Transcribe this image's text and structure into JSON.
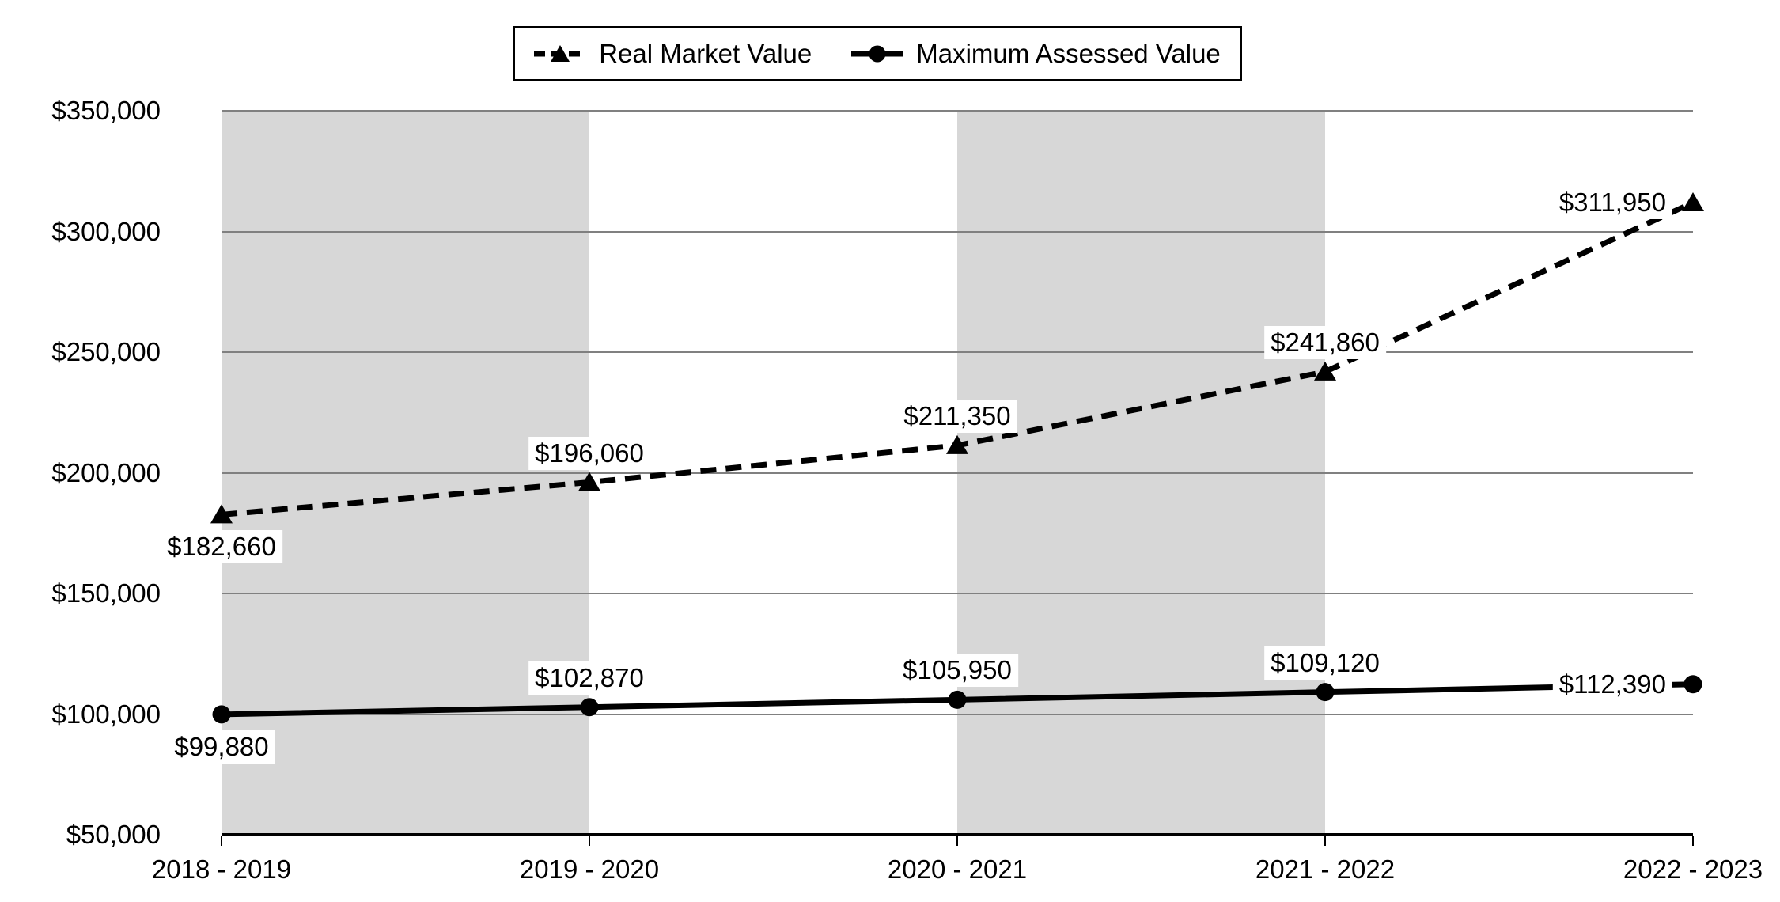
{
  "chart_data": {
    "type": "line",
    "title": "",
    "categories": [
      "2018 - 2019",
      "2019 - 2020",
      "2020 - 2021",
      "2021 - 2022",
      "2022 - 2023"
    ],
    "series": [
      {
        "name": "Real Market Value",
        "line_style": "dashed",
        "marker": "triangle",
        "color": "#000000",
        "values": [
          182660,
          196060,
          211350,
          241860,
          311950
        ],
        "data_labels": [
          "$182,660",
          "$196,060",
          "$211,350",
          "$241,860",
          "$311,950"
        ],
        "label_positions": [
          "below",
          "above",
          "above",
          "above",
          "left"
        ]
      },
      {
        "name": "Maximum Assessed Value",
        "line_style": "solid",
        "marker": "circle",
        "color": "#000000",
        "values": [
          99880,
          102870,
          105950,
          109120,
          112390
        ],
        "data_labels": [
          "$99,880",
          "$102,870",
          "$105,950",
          "$109,120",
          "$112,390"
        ],
        "label_positions": [
          "below",
          "above",
          "above",
          "above",
          "left"
        ]
      }
    ],
    "y_axis": {
      "min": 50000,
      "max": 350000,
      "step": 50000,
      "tick_labels": [
        "$50,000",
        "$100,000",
        "$150,000",
        "$200,000",
        "$250,000",
        "$300,000",
        "$350,000"
      ]
    },
    "x_axis": {
      "tick_labels": [
        "2018 - 2019",
        "2019 - 2020",
        "2020 - 2021",
        "2021 - 2022",
        "2022 - 2023"
      ]
    },
    "grid": true,
    "legend_position": "top-center",
    "plot_bands": {
      "band_start_indexes": [
        0,
        2
      ],
      "color": "#D7D7D7"
    },
    "colors": {
      "background": "#FFFFFF",
      "gridline": "#808080",
      "axis_line": "#000000",
      "series": "#000000",
      "text": "#000000"
    }
  }
}
